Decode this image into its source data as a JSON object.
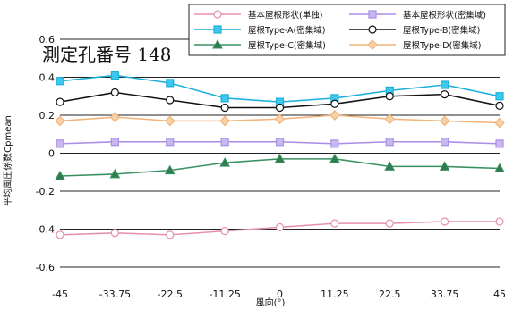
{
  "chart_data": {
    "type": "line",
    "title": "測定孔番号 148",
    "xlabel": "風向(°)",
    "ylabel": "平均風圧係数Cpmean",
    "x": [
      -45,
      -33.75,
      -22.5,
      -11.25,
      0,
      11.25,
      22.5,
      33.75,
      45
    ],
    "x_tick_labels": [
      "-45",
      "-33.75",
      "-22.5",
      "-11.25",
      "0",
      "11.25",
      "22.5",
      "33.75",
      "45"
    ],
    "xlim": [
      -45,
      45
    ],
    "ylim": [
      -0.6,
      0.6
    ],
    "y_ticks": [
      -0.6,
      -0.4,
      -0.2,
      0,
      0.2,
      0.4,
      0.6
    ],
    "y_tick_labels": [
      "-0.6",
      "-0.4",
      "-0.2",
      "0",
      "0.2",
      "0.4",
      "0.6"
    ],
    "grid": "horizontal",
    "legend_position": "top-right",
    "series": [
      {
        "name": "基本屋根形状(単独)",
        "color": "#e78fb3",
        "marker": "circle",
        "marker_fill": "#ffffff",
        "values": [
          -0.43,
          -0.42,
          -0.43,
          -0.41,
          -0.39,
          -0.37,
          -0.37,
          -0.36,
          -0.36
        ]
      },
      {
        "name": "基本屋根形状(密集域)",
        "color": "#a98ee6",
        "marker": "square",
        "marker_fill": "#c9b8f0",
        "values": [
          0.05,
          0.06,
          0.06,
          0.06,
          0.06,
          0.05,
          0.06,
          0.06,
          0.05
        ]
      },
      {
        "name": "屋根Type-A(密集域)",
        "color": "#1bb0d8",
        "marker": "square",
        "marker_fill": "#3fc8ee",
        "values": [
          0.38,
          0.41,
          0.37,
          0.29,
          0.27,
          0.29,
          0.33,
          0.36,
          0.3
        ]
      },
      {
        "name": "屋根Type-B(密集域)",
        "color": "#111111",
        "marker": "circle",
        "marker_fill": "#ffffff",
        "values": [
          0.27,
          0.32,
          0.28,
          0.24,
          0.24,
          0.26,
          0.3,
          0.31,
          0.25
        ]
      },
      {
        "name": "屋根Type-C(密集域)",
        "color": "#3a9060",
        "marker": "triangle",
        "marker_fill": "#2e7d4f",
        "values": [
          -0.12,
          -0.11,
          -0.09,
          -0.05,
          -0.03,
          -0.03,
          -0.07,
          -0.07,
          -0.08
        ]
      },
      {
        "name": "屋根Type-D(密集域)",
        "color": "#f2b27a",
        "marker": "diamond",
        "marker_fill": "#f7d2a8",
        "values": [
          0.17,
          0.19,
          0.17,
          0.17,
          0.18,
          0.2,
          0.18,
          0.17,
          0.16
        ]
      }
    ]
  }
}
